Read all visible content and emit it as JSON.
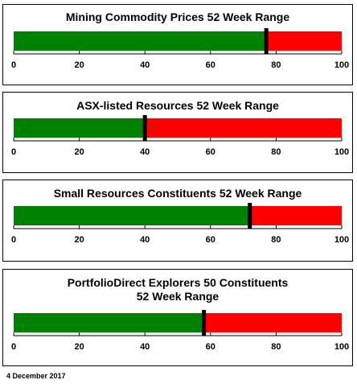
{
  "chart_data": [
    {
      "type": "bar",
      "title": "Mining Commodity Prices 52 Week Range",
      "value": 77,
      "xlim": [
        0,
        100
      ],
      "ticks": [
        "0",
        "20",
        "40",
        "60",
        "80",
        "100"
      ],
      "tick_values": [
        0,
        20,
        40,
        60,
        80,
        100
      ],
      "colors": {
        "below": "#008000",
        "above": "#ff0000",
        "marker": "#000000"
      }
    },
    {
      "type": "bar",
      "title": "ASX-listed Resources 52 Week Range",
      "value": 40,
      "xlim": [
        0,
        100
      ],
      "ticks": [
        "0",
        "20",
        "40",
        "60",
        "80",
        "100"
      ],
      "tick_values": [
        0,
        20,
        40,
        60,
        80,
        100
      ],
      "colors": {
        "below": "#008000",
        "above": "#ff0000",
        "marker": "#000000"
      }
    },
    {
      "type": "bar",
      "title": "Small Resources Constituents 52 Week Range",
      "value": 72,
      "xlim": [
        0,
        100
      ],
      "ticks": [
        "0",
        "20",
        "40",
        "60",
        "80",
        "100"
      ],
      "tick_values": [
        0,
        20,
        40,
        60,
        80,
        100
      ],
      "colors": {
        "below": "#008000",
        "above": "#ff0000",
        "marker": "#000000"
      }
    },
    {
      "type": "bar",
      "title": "PortfolioDirect Explorers 50 Constituents",
      "subtitle": "52 Week Range",
      "value": 58,
      "xlim": [
        0,
        100
      ],
      "ticks": [
        "0",
        "20",
        "40",
        "60",
        "80",
        "100"
      ],
      "tick_values": [
        0,
        20,
        40,
        60,
        80,
        100
      ],
      "colors": {
        "below": "#008000",
        "above": "#ff0000",
        "marker": "#000000"
      }
    }
  ],
  "footer": {
    "date": "4 December 2017"
  }
}
